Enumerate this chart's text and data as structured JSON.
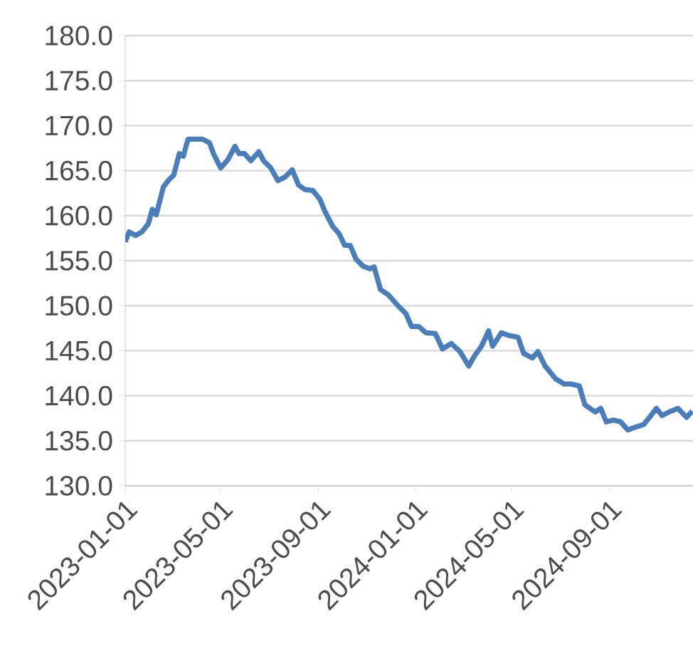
{
  "chart_data": {
    "type": "line",
    "x": [
      "2023-01-01",
      "2023-01-06",
      "2023-01-14",
      "2023-01-22",
      "2023-01-30",
      "2023-02-04",
      "2023-02-09",
      "2023-02-18",
      "2023-02-24",
      "2023-03-03",
      "2023-03-10",
      "2023-03-15",
      "2023-03-21",
      "2023-03-30",
      "2023-04-08",
      "2023-04-17",
      "2023-04-22",
      "2023-05-01",
      "2023-05-10",
      "2023-05-19",
      "2023-05-24",
      "2023-05-31",
      "2023-06-08",
      "2023-06-18",
      "2023-06-24",
      "2023-07-03",
      "2023-07-12",
      "2023-07-21",
      "2023-07-30",
      "2023-08-07",
      "2023-08-15",
      "2023-08-25",
      "2023-09-03",
      "2023-09-09",
      "2023-09-19",
      "2023-09-27",
      "2023-10-04",
      "2023-10-11",
      "2023-10-18",
      "2023-10-27",
      "2023-11-05",
      "2023-11-10",
      "2023-11-18",
      "2023-11-28",
      "2023-12-09",
      "2023-12-20",
      "2023-12-27",
      "2024-01-05",
      "2024-01-14",
      "2024-01-26",
      "2024-02-04",
      "2024-02-15",
      "2024-02-26",
      "2024-03-08",
      "2024-03-15",
      "2024-03-24",
      "2024-04-02",
      "2024-04-07",
      "2024-04-18",
      "2024-04-27",
      "2024-05-09",
      "2024-05-16",
      "2024-05-27",
      "2024-06-03",
      "2024-06-12",
      "2024-06-25",
      "2024-07-06",
      "2024-07-15",
      "2024-07-25",
      "2024-08-01",
      "2024-08-14",
      "2024-08-21",
      "2024-08-28",
      "2024-09-06",
      "2024-09-15",
      "2024-09-24",
      "2024-10-03",
      "2024-10-14",
      "2024-10-23",
      "2024-10-30",
      "2024-11-06",
      "2024-11-15",
      "2024-11-26",
      "2024-12-07",
      "2024-12-14"
    ],
    "series": [
      {
        "color": "#4a7ebb",
        "values": [
          157.1,
          158.2,
          157.8,
          158.2,
          159.1,
          160.7,
          160.1,
          163.2,
          163.9,
          164.5,
          166.9,
          166.6,
          168.5,
          168.5,
          168.5,
          168.1,
          166.9,
          165.3,
          166.2,
          167.7,
          166.9,
          166.9,
          166.1,
          167.1,
          166.1,
          165.3,
          163.9,
          164.3,
          165.1,
          163.4,
          162.9,
          162.8,
          161.8,
          160.5,
          158.8,
          158.0,
          156.7,
          156.7,
          155.2,
          154.4,
          154.1,
          154.3,
          151.8,
          151.2,
          150.1,
          149.1,
          147.7,
          147.7,
          147.0,
          146.9,
          145.2,
          145.8,
          144.9,
          143.3,
          144.4,
          145.5,
          147.2,
          145.5,
          147.0,
          146.7,
          146.5,
          144.7,
          144.2,
          144.9,
          143.3,
          141.9,
          141.3,
          141.3,
          141.1,
          139.0,
          138.2,
          138.6,
          137.1,
          137.3,
          137.1,
          136.2,
          136.5,
          136.8,
          137.8,
          138.6,
          137.8,
          138.2,
          138.6,
          137.6,
          138.3
        ]
      }
    ],
    "xlim": [
      "2023-01-01",
      "2024-12-15"
    ],
    "xticks": [
      "2023-01-01",
      "2023-05-01",
      "2023-09-01",
      "2024-01-01",
      "2024-05-01",
      "2024-09-01"
    ],
    "ylim": [
      130,
      180
    ],
    "yticks": [
      {
        "value": 130,
        "label": "130.0"
      },
      {
        "value": 135,
        "label": "135.0"
      },
      {
        "value": 140,
        "label": "140.0"
      },
      {
        "value": 145,
        "label": "145.0"
      },
      {
        "value": 150,
        "label": "150.0"
      },
      {
        "value": 155,
        "label": "155.0"
      },
      {
        "value": 160,
        "label": "160.0"
      },
      {
        "value": 165,
        "label": "165.0"
      },
      {
        "value": 170,
        "label": "170.0"
      },
      {
        "value": 175,
        "label": "175.0"
      },
      {
        "value": 180,
        "label": "180.0"
      }
    ],
    "grid": "y",
    "marker": "none",
    "line_style": "solid"
  }
}
